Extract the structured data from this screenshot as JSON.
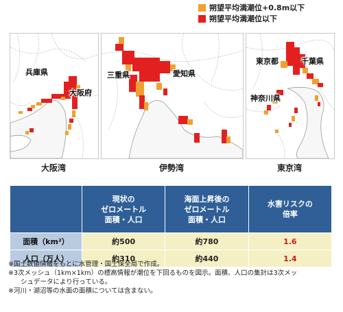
{
  "legend": [
    {
      "label": "朔望平均満潮位+0.8m以下",
      "color": "#f0a030"
    },
    {
      "label": "朔望平均満潮位以下",
      "color": "#e32020"
    }
  ],
  "maps": [
    {
      "bay": "大阪湾",
      "labels": [
        "兵庫県",
        "大阪府"
      ]
    },
    {
      "bay": "伊勢湾",
      "labels": [
        "三重県",
        "愛知県"
      ]
    },
    {
      "bay": "東京湾",
      "labels": [
        "東京都",
        "千葉県",
        "神奈川県"
      ]
    }
  ],
  "table": {
    "headers": [
      "現状の\nゼロメートル\n面積・人口",
      "海面上昇後の\nゼロメートル\n面積・人口",
      "水害リスクの\n倍率"
    ],
    "rows": [
      {
        "label": "面積（km²）",
        "current": "約500",
        "future": "約780",
        "ratio": "1.6"
      },
      {
        "label": "人口（万人）",
        "current": "約310",
        "future": "約440",
        "ratio": "1.4"
      }
    ]
  },
  "notes": [
    "※国土数値情報をもとに水管理・国土保全局で作成。",
    "※3次メッシュ（1km×1km）の標高情報が潮位を下回るものを図示。面積、人口の集計は3次メッ",
    "シュデータにより行っている。",
    "※河川・湖沼等の水面の面積については含まない。"
  ]
}
